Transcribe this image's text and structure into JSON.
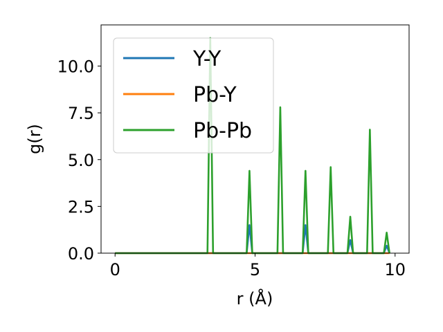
{
  "chart_data": {
    "type": "line",
    "title": "",
    "xlabel": "r (Å)",
    "ylabel": "g(r)",
    "xlim": [
      -0.5,
      10.5
    ],
    "ylim": [
      0,
      12.2
    ],
    "xticks": [
      0,
      5,
      10
    ],
    "xtick_labels": [
      "0",
      "5",
      "10"
    ],
    "yticks": [
      0,
      2.5,
      5,
      7.5,
      10
    ],
    "ytick_labels": [
      "0.0",
      "2.5",
      "5.0",
      "7.5",
      "10.0"
    ],
    "grid": false,
    "legend_position": "upper-left",
    "series": [
      {
        "name": "Y-Y",
        "color": "#1f77b4",
        "points": [
          [
            0,
            0
          ],
          [
            4.7,
            0
          ],
          [
            4.8,
            1.5
          ],
          [
            4.9,
            0
          ],
          [
            6.7,
            0
          ],
          [
            6.8,
            1.5
          ],
          [
            6.9,
            0
          ],
          [
            8.3,
            0
          ],
          [
            8.4,
            0.7
          ],
          [
            8.5,
            0
          ],
          [
            9.6,
            0
          ],
          [
            9.7,
            0.4
          ],
          [
            9.8,
            0
          ]
        ]
      },
      {
        "name": "Pb-Y",
        "color": "#ff7f0e",
        "points": [
          [
            0,
            0
          ],
          [
            9.8,
            0
          ]
        ]
      },
      {
        "name": "Pb-Pb",
        "color": "#2ca02c",
        "points": [
          [
            0,
            0
          ],
          [
            3.3,
            0
          ],
          [
            3.4,
            11.5
          ],
          [
            3.5,
            0
          ],
          [
            4.7,
            0
          ],
          [
            4.8,
            4.4
          ],
          [
            4.9,
            0
          ],
          [
            5.8,
            0
          ],
          [
            5.9,
            7.8
          ],
          [
            6.0,
            0
          ],
          [
            6.7,
            0
          ],
          [
            6.8,
            4.4
          ],
          [
            6.9,
            0
          ],
          [
            7.6,
            0
          ],
          [
            7.7,
            4.6
          ],
          [
            7.8,
            0
          ],
          [
            8.3,
            0
          ],
          [
            8.4,
            1.95
          ],
          [
            8.5,
            0
          ],
          [
            9.0,
            0
          ],
          [
            9.1,
            6.6
          ],
          [
            9.2,
            0
          ],
          [
            9.6,
            0
          ],
          [
            9.7,
            1.1
          ],
          [
            9.8,
            0
          ]
        ]
      }
    ]
  }
}
